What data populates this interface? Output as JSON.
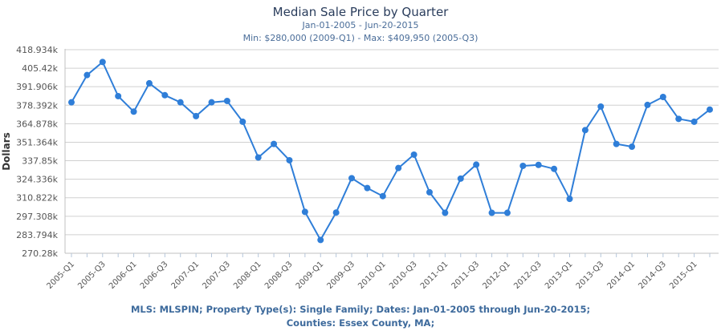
{
  "chart_data": {
    "type": "line",
    "title": "Median Sale Price by Quarter",
    "subtitle": "Jan-01-2005 - Jun-20-2015",
    "subtitle2": "Min: $280,000 (2009-Q1) - Max: $409,950 (2005-Q3)",
    "xlabel": "",
    "ylabel": "Dollars",
    "ylim": [
      270280,
      418934
    ],
    "yticks": [
      "270.28k",
      "283.794k",
      "297.308k",
      "310.822k",
      "324.336k",
      "337.85k",
      "351.364k",
      "364.878k",
      "378.392k",
      "391.906k",
      "405.42k",
      "418.934k"
    ],
    "grid": true,
    "legend": "none",
    "series_color": "#2f7ed8",
    "categories": [
      "2005-Q1",
      "2005-Q2",
      "2005-Q3",
      "2005-Q4",
      "2006-Q1",
      "2006-Q2",
      "2006-Q3",
      "2006-Q4",
      "2007-Q1",
      "2007-Q2",
      "2007-Q3",
      "2007-Q4",
      "2008-Q1",
      "2008-Q2",
      "2008-Q3",
      "2008-Q4",
      "2009-Q1",
      "2009-Q2",
      "2009-Q3",
      "2009-Q4",
      "2010-Q1",
      "2010-Q2",
      "2010-Q3",
      "2010-Q4",
      "2011-Q1",
      "2011-Q2",
      "2011-Q3",
      "2011-Q4",
      "2012-Q1",
      "2012-Q2",
      "2012-Q3",
      "2012-Q4",
      "2013-Q1",
      "2013-Q2",
      "2013-Q3",
      "2013-Q4",
      "2014-Q1",
      "2014-Q2",
      "2014-Q3",
      "2014-Q4",
      "2015-Q1",
      "2015-Q2"
    ],
    "xtick_labels": [
      "2005-Q1",
      "2005-Q3",
      "2006-Q1",
      "2006-Q3",
      "2007-Q1",
      "2007-Q3",
      "2008-Q1",
      "2008-Q3",
      "2009-Q1",
      "2009-Q3",
      "2010-Q1",
      "2010-Q3",
      "2011-Q1",
      "2011-Q3",
      "2012-Q1",
      "2012-Q3",
      "2013-Q1",
      "2013-Q3",
      "2014-Q1",
      "2014-Q3",
      "2015-Q1"
    ],
    "series": [
      {
        "name": "Median Sale Price",
        "values": [
          380500,
          400400,
          409950,
          385000,
          373700,
          394400,
          385700,
          380500,
          370400,
          380500,
          381500,
          366300,
          340200,
          350100,
          338200,
          300500,
          280000,
          300000,
          325100,
          317900,
          312000,
          332500,
          342300,
          314800,
          299800,
          324800,
          335000,
          299800,
          299800,
          334100,
          334800,
          331900,
          310000,
          360200,
          377400,
          350100,
          348100,
          378600,
          384400,
          368400,
          366300,
          375200
        ]
      }
    ],
    "footer": [
      "MLS: MLSPIN; Property Type(s): Single Family; Dates: Jan-01-2005 through Jun-20-2015;",
      "Counties: Essex County, MA;"
    ]
  }
}
